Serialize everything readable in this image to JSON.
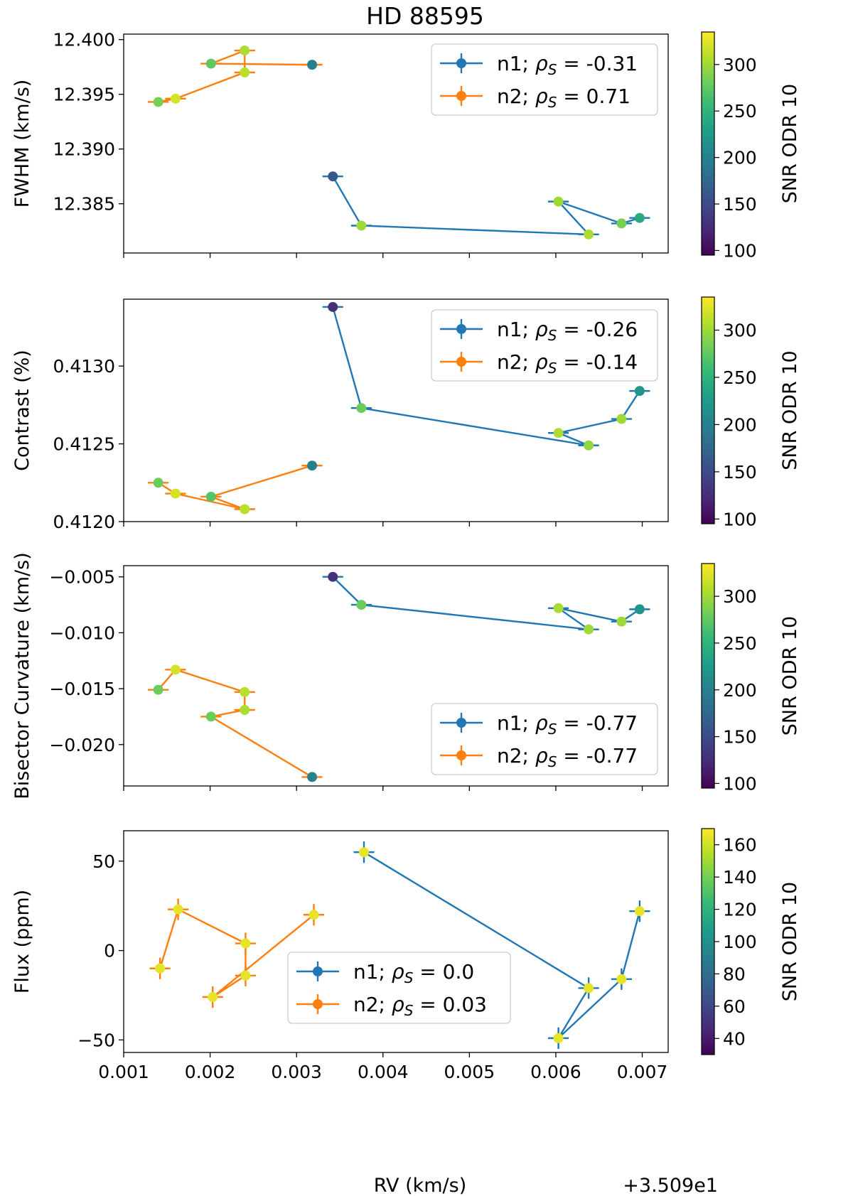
{
  "figure": {
    "title": "HD 88595",
    "x_axis_label": "RV (km/s)",
    "x_offset_text": "+3.509e1",
    "x_tick_labels": [
      "0.001",
      "0.002",
      "0.003",
      "0.004",
      "0.005",
      "0.006",
      "0.007"
    ],
    "colorbar_label": "SNR ODR 10"
  },
  "colors": {
    "n1": "#1f77b4",
    "n2": "#ff7f0e",
    "viridis": [
      "#440154",
      "#482878",
      "#3e4989",
      "#31688e",
      "#26828e",
      "#1f9e89",
      "#35b779",
      "#6ece58",
      "#b5de2b",
      "#fde725"
    ]
  },
  "chart_data": [
    {
      "type": "scatter",
      "title": "HD 88595",
      "xlabel": "RV (km/s)",
      "ylabel": "FWHM (km/s)",
      "xlim": [
        0.001,
        0.0073
      ],
      "ylim": [
        12.3805,
        12.4005
      ],
      "x_offset": "+3.509e1",
      "yticks": [
        12.385,
        12.39,
        12.395,
        12.4
      ],
      "ytick_labels": [
        "12.385",
        "12.390",
        "12.395",
        "12.400"
      ],
      "xticks": [
        0.001,
        0.002,
        0.003,
        0.004,
        0.005,
        0.006,
        0.007
      ],
      "show_x_tick_labels": false,
      "legend_position": "upper right",
      "series": [
        {
          "name": "n1",
          "label": "n1; ρS = -0.31",
          "label_prefix": "n1;",
          "rho_value": "-0.31",
          "color": "#1f77b4",
          "x": [
            0.00342,
            0.00375,
            0.00638,
            0.00603,
            0.00676,
            0.00697
          ],
          "y": [
            12.3875,
            12.383,
            12.3822,
            12.3852,
            12.3832,
            12.3837
          ],
          "xerr": [
            0.00012,
            0.00012,
            0.00012,
            0.00012,
            0.00012,
            0.00012
          ],
          "yerr": [
            0.0003,
            0.0002,
            0.0002,
            0.0002,
            0.0002,
            0.0002
          ],
          "snr": [
            160,
            300,
            305,
            300,
            285,
            240
          ]
        },
        {
          "name": "n2",
          "label": "n2; ρS = 0.71",
          "label_prefix": "n2;",
          "rho_value": "0.71",
          "color": "#ff7f0e",
          "x": [
            0.00318,
            0.00201,
            0.0024,
            0.0024,
            0.0016,
            0.0014
          ],
          "y": [
            12.3977,
            12.3978,
            12.399,
            12.397,
            12.3946,
            12.3943
          ],
          "xerr": [
            0.00012,
            0.00012,
            0.00012,
            0.00012,
            0.00012,
            0.00012
          ],
          "yerr": [
            0.0002,
            0.0002,
            0.0002,
            0.0002,
            0.0002,
            0.0002
          ],
          "snr": [
            200,
            275,
            305,
            310,
            320,
            285
          ]
        }
      ],
      "colorbar": {
        "label": "SNR ODR 10",
        "range": [
          95,
          335
        ],
        "ticks": [
          100,
          150,
          200,
          250,
          300
        ],
        "tick_labels": [
          "100",
          "150",
          "200",
          "250",
          "300"
        ]
      }
    },
    {
      "type": "scatter",
      "xlabel": "",
      "ylabel": "Contrast (%)",
      "xlim": [
        0.001,
        0.0073
      ],
      "ylim": [
        0.412,
        0.41343
      ],
      "yticks": [
        0.412,
        0.4125,
        0.413
      ],
      "ytick_labels": [
        "0.4120",
        "0.4125",
        "0.4130"
      ],
      "xticks": [
        0.001,
        0.002,
        0.003,
        0.004,
        0.005,
        0.006,
        0.007
      ],
      "show_x_tick_labels": false,
      "legend_position": "upper right",
      "series": [
        {
          "name": "n1",
          "label": "n1; ρS = -0.26",
          "label_prefix": "n1;",
          "rho_value": "-0.26",
          "color": "#1f77b4",
          "x": [
            0.00342,
            0.00375,
            0.00638,
            0.00603,
            0.00676,
            0.00697
          ],
          "y": [
            0.41338,
            0.41273,
            0.41249,
            0.41257,
            0.41266,
            0.41284
          ],
          "xerr": [
            0.00012,
            0.00012,
            0.00012,
            0.00012,
            0.00012,
            0.00012
          ],
          "yerr": [
            5e-06,
            5e-06,
            5e-06,
            5e-06,
            5e-06,
            5e-06
          ],
          "snr": [
            130,
            280,
            295,
            305,
            300,
            220
          ]
        },
        {
          "name": "n2",
          "label": "n2; ρS = -0.14",
          "label_prefix": "n2;",
          "rho_value": "-0.14",
          "color": "#ff7f0e",
          "x": [
            0.00318,
            0.00201,
            0.0024,
            0.0016,
            0.0014
          ],
          "y": [
            0.41236,
            0.41216,
            0.41208,
            0.41218,
            0.41225
          ],
          "xerr": [
            0.00012,
            0.00012,
            0.00012,
            0.00012,
            0.00012
          ],
          "yerr": [
            5e-06,
            5e-06,
            5e-06,
            5e-06,
            5e-06
          ],
          "snr": [
            200,
            270,
            310,
            320,
            280
          ]
        }
      ],
      "colorbar": {
        "label": "SNR ODR 10",
        "range": [
          95,
          335
        ],
        "ticks": [
          100,
          150,
          200,
          250,
          300
        ],
        "tick_labels": [
          "100",
          "150",
          "200",
          "250",
          "300"
        ]
      }
    },
    {
      "type": "scatter",
      "xlabel": "",
      "ylabel": "Bisector Curvature (km/s)",
      "xlim": [
        0.001,
        0.0073
      ],
      "ylim": [
        -0.0237,
        -0.004
      ],
      "yticks": [
        -0.005,
        -0.01,
        -0.015,
        -0.02
      ],
      "ytick_labels": [
        "−0.005",
        "−0.010",
        "−0.015",
        "−0.020"
      ],
      "xticks": [
        0.001,
        0.002,
        0.003,
        0.004,
        0.005,
        0.006,
        0.007
      ],
      "show_x_tick_labels": false,
      "legend_position": "lower right",
      "series": [
        {
          "name": "n1",
          "label": "n1; ρS = -0.77",
          "label_prefix": "n1;",
          "rho_value": "-0.77",
          "color": "#1f77b4",
          "x": [
            0.00342,
            0.00375,
            0.00638,
            0.00603,
            0.00676,
            0.00697
          ],
          "y": [
            -0.005,
            -0.0075,
            -0.0097,
            -0.0078,
            -0.009,
            -0.0079
          ],
          "xerr": [
            0.00012,
            0.00012,
            0.00012,
            0.00012,
            0.00012,
            0.00012
          ],
          "yerr": [
            0.0002,
            0.0002,
            0.0002,
            0.0002,
            0.0002,
            0.0002
          ],
          "snr": [
            130,
            280,
            300,
            305,
            300,
            220
          ]
        },
        {
          "name": "n2",
          "label": "n2; ρS = -0.77",
          "label_prefix": "n2;",
          "rho_value": "-0.77",
          "color": "#ff7f0e",
          "x": [
            0.00318,
            0.00201,
            0.0024,
            0.0024,
            0.0016,
            0.0014
          ],
          "y": [
            -0.0229,
            -0.0175,
            -0.0169,
            -0.0153,
            -0.0133,
            -0.0151
          ],
          "xerr": [
            0.00012,
            0.00012,
            0.00012,
            0.00012,
            0.00012,
            0.00012
          ],
          "yerr": [
            0.0003,
            0.0003,
            0.0003,
            0.0003,
            0.0003,
            0.0003
          ],
          "snr": [
            200,
            280,
            305,
            310,
            320,
            280
          ]
        }
      ],
      "colorbar": {
        "label": "SNR ODR 10",
        "range": [
          95,
          335
        ],
        "ticks": [
          100,
          150,
          200,
          250,
          300
        ],
        "tick_labels": [
          "100",
          "150",
          "200",
          "250",
          "300"
        ]
      }
    },
    {
      "type": "scatter",
      "xlabel": "RV (km/s)",
      "ylabel": "Flux (ppm)",
      "xlim": [
        0.001,
        0.0073
      ],
      "ylim": [
        -57,
        67
      ],
      "yticks": [
        -50,
        0,
        50
      ],
      "ytick_labels": [
        "−50",
        "0",
        "50"
      ],
      "xticks": [
        0.001,
        0.002,
        0.003,
        0.004,
        0.005,
        0.006,
        0.007
      ],
      "xtick_labels": [
        "0.001",
        "0.002",
        "0.003",
        "0.004",
        "0.005",
        "0.006",
        "0.007"
      ],
      "show_x_tick_labels": true,
      "x_offset": "+3.509e1",
      "legend_position": "lower center",
      "series": [
        {
          "name": "n1",
          "label": "n1; ρS = 0.0",
          "label_prefix": "n1;",
          "rho_value": "0.0",
          "color": "#1f77b4",
          "x": [
            0.00378,
            0.00638,
            0.00603,
            0.00676,
            0.00697
          ],
          "y": [
            55,
            -21,
            -49,
            -16,
            22
          ],
          "xerr": [
            0.00012,
            0.00012,
            0.00012,
            0.00012,
            0.00012
          ],
          "yerr": [
            6,
            6,
            6,
            6,
            6
          ],
          "snr": [
            165,
            165,
            165,
            165,
            165
          ]
        },
        {
          "name": "n2",
          "label": "n2; ρS = 0.03",
          "label_prefix": "n2;",
          "rho_value": "0.03",
          "color": "#ff7f0e",
          "x": [
            0.0032,
            0.00203,
            0.00241,
            0.00241,
            0.00163,
            0.00142
          ],
          "y": [
            20,
            -26,
            -14,
            4,
            23,
            -10
          ],
          "xerr": [
            0.00012,
            0.00012,
            0.00012,
            0.00012,
            0.00012,
            0.00012
          ],
          "yerr": [
            6,
            6,
            6,
            6,
            6,
            6
          ],
          "snr": [
            165,
            165,
            165,
            165,
            165,
            165
          ]
        }
      ],
      "colorbar": {
        "label": "SNR ODR 10",
        "range": [
          30,
          170
        ],
        "ticks": [
          40,
          60,
          80,
          100,
          120,
          140,
          160
        ],
        "tick_labels": [
          "40",
          "60",
          "80",
          "100",
          "120",
          "140",
          "160"
        ]
      }
    }
  ]
}
